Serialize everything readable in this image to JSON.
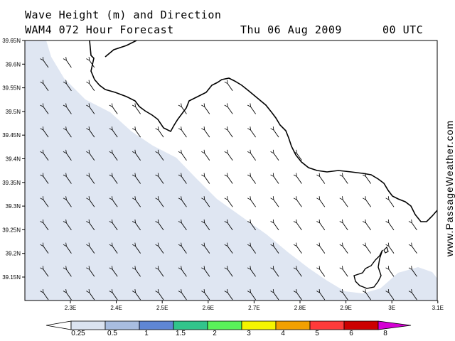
{
  "header": {
    "title": "Wave Height (m) and Direction",
    "model": "WAM4 072 Hour Forecast",
    "date": "Thu 06 Aug 2009",
    "time": "00 UTC"
  },
  "website": "www.PassageWeather.com",
  "map": {
    "lat_labels": [
      "39.65N",
      "39.6N",
      "39.55N",
      "39.5N",
      "39.45N",
      "39.4N",
      "39.35N",
      "39.3N",
      "39.25N",
      "39.2N",
      "39.15N"
    ],
    "lon_labels": [
      "2.3E",
      "2.4E",
      "2.5E",
      "2.6E",
      "2.7E",
      "2.8E",
      "2.9E",
      "3E",
      "3.1E"
    ],
    "wave_arrow_direction": "north-west",
    "sea_zone_colors": {
      "below_0_25": "#ffffff",
      "0_25_to_0_5": "#dfe6f2"
    },
    "land_color": "#ffffff"
  },
  "colorbar": {
    "labels": [
      "0.25",
      "0.5",
      "1",
      "1.5",
      "2",
      "3",
      "4",
      "5",
      "6",
      "8"
    ],
    "colors": [
      "#ffffff",
      "#dbe3f0",
      "#a8bde0",
      "#5f86d4",
      "#31c48b",
      "#5af25a",
      "#f5f500",
      "#f2a000",
      "#ff3a3a",
      "#cc0000",
      "#d400d4"
    ]
  }
}
